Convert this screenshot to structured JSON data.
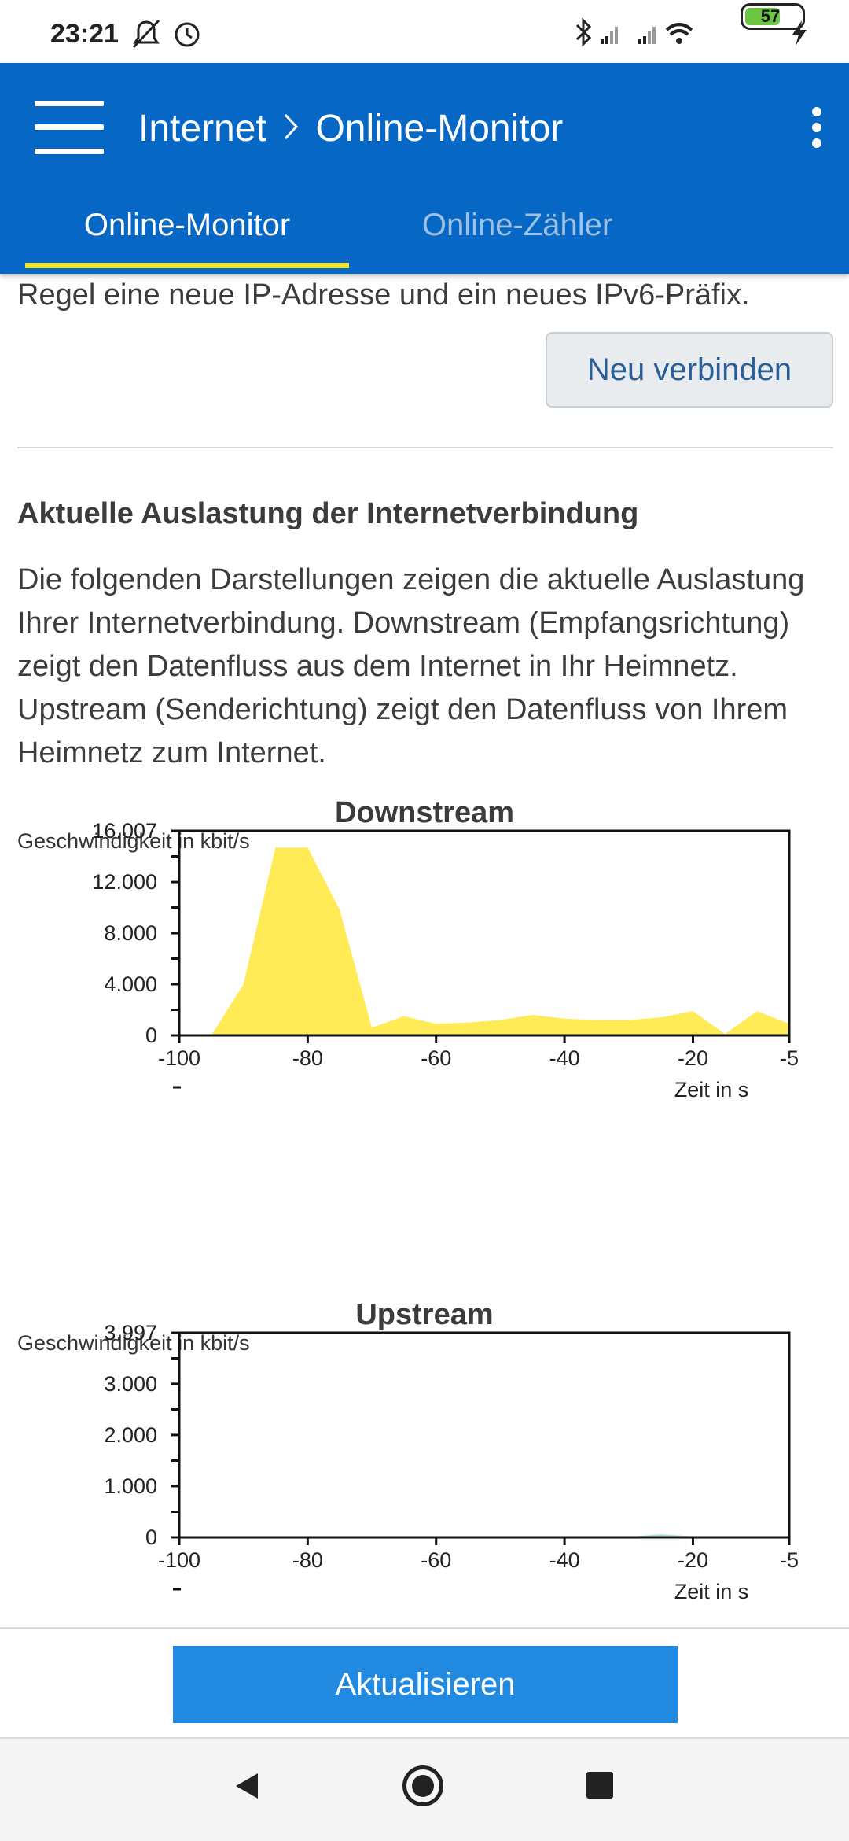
{
  "status_bar": {
    "time": "23:21",
    "battery": "57"
  },
  "app_bar": {
    "breadcrumb_parent": "Internet",
    "breadcrumb_current": "Online-Monitor",
    "tabs": [
      {
        "label": "Online-Monitor",
        "active": true
      },
      {
        "label": "Online-Zähler",
        "active": false
      }
    ]
  },
  "content": {
    "intro_text": "Regel eine neue IP-Adresse und ein neues IPv6-Präfix.",
    "reconnect_button": "Neu verbinden",
    "section_heading": "Aktuelle Auslastung der Internetverbindung",
    "section_description": "Die folgenden Darstellungen zeigen die aktuelle Auslastung Ihrer Internetverbindung. Downstream (Empfangsrichtung) zeigt den Datenfluss aus dem Internet in Ihr Heimnetz. Upstream (Senderichtung) zeigt den Datenfluss von Ihrem Heimnetz zum Internet."
  },
  "chart_data": [
    {
      "type": "area",
      "title": "Downstream",
      "ylabel": "Geschwindigkeit in kbit/s",
      "xlabel": "Zeit in s",
      "ylim": [
        0,
        16007
      ],
      "xlim": [
        -100,
        -5
      ],
      "ytick_labels": [
        "0",
        "4.000",
        "8.000",
        "12.000",
        "16.007"
      ],
      "ytick_values": [
        0,
        4000,
        8000,
        12000,
        16007
      ],
      "xtick_labels": [
        "-100",
        "-80",
        "-60",
        "-40",
        "-20",
        "-5"
      ],
      "xtick_values": [
        -100,
        -80,
        -60,
        -40,
        -20,
        -5
      ],
      "x": [
        -95,
        -90,
        -85,
        -80,
        -75,
        -70,
        -65,
        -60,
        -55,
        -50,
        -45,
        -40,
        -35,
        -30,
        -25,
        -20,
        -15,
        -10,
        -5
      ],
      "values": [
        0,
        4000,
        14700,
        14700,
        9800,
        600,
        1500,
        900,
        1000,
        1200,
        1600,
        1300,
        1200,
        1200,
        1400,
        1900,
        100,
        1900,
        900
      ],
      "color": "#ffeb55"
    },
    {
      "type": "area",
      "title": "Upstream",
      "ylabel": "Geschwindigkeit in kbit/s",
      "xlabel": "Zeit in s",
      "ylim": [
        0,
        3997
      ],
      "xlim": [
        -100,
        -5
      ],
      "ytick_labels": [
        "0",
        "1.000",
        "2.000",
        "3.000",
        "3.997"
      ],
      "ytick_values": [
        0,
        1000,
        2000,
        3000,
        3997
      ],
      "xtick_labels": [
        "-100",
        "-80",
        "-60",
        "-40",
        "-20",
        "-5"
      ],
      "xtick_values": [
        -100,
        -80,
        -60,
        -40,
        -20,
        -5
      ],
      "x": [
        -95,
        -90,
        -85,
        -80,
        -75,
        -70,
        -65,
        -60,
        -55,
        -50,
        -45,
        -40,
        -35,
        -30,
        -25,
        -20,
        -15,
        -10,
        -5
      ],
      "values": [
        0,
        10,
        20,
        20,
        15,
        10,
        10,
        10,
        10,
        10,
        10,
        10,
        10,
        10,
        60,
        20,
        10,
        20,
        10
      ],
      "color": "#a6e3cf"
    }
  ],
  "action": {
    "refresh_button": "Aktualisieren"
  }
}
